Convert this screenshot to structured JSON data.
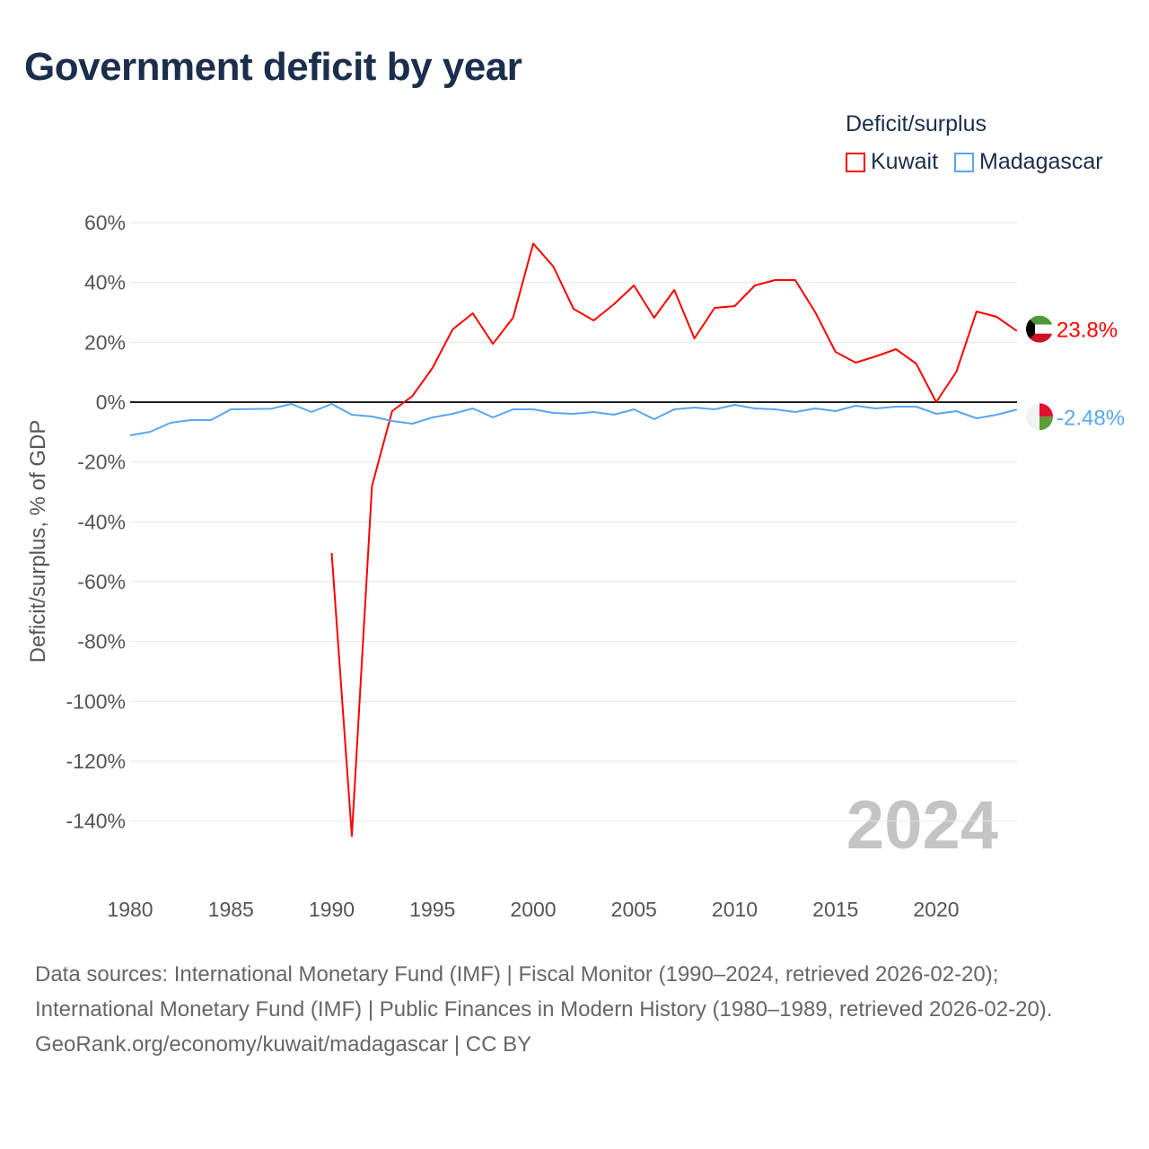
{
  "title": "Government deficit by year",
  "legend": {
    "title": "Deficit/surplus",
    "items": [
      {
        "name": "Kuwait",
        "color": "#ff0000"
      },
      {
        "name": "Madagascar",
        "color": "#5aa5ef"
      }
    ]
  },
  "watermark_year": "2024",
  "sources": [
    "Data sources: International Monetary Fund (IMF) | Fiscal Monitor (1990–2024, retrieved 2026-02-20); International Monetary Fund (IMF) | Public Finances in Modern History (1980–1989, retrieved 2026-02-20).",
    "GeoRank.org/economy/kuwait/madagascar | CC BY"
  ],
  "chart_data": {
    "type": "line",
    "title": "Government deficit by year",
    "xlabel": "",
    "ylabel": "Deficit/surplus, % of GDP",
    "xlim": [
      1980,
      2024
    ],
    "ylim": [
      -160,
      65
    ],
    "xticks": [
      1980,
      1985,
      1990,
      1995,
      2000,
      2005,
      2010,
      2015,
      2020
    ],
    "yticks": [
      60,
      40,
      20,
      0,
      -20,
      -40,
      -60,
      -80,
      -100,
      -120,
      -140
    ],
    "ytick_labels": [
      "60%",
      "40%",
      "20%",
      "0%",
      "-20%",
      "-40%",
      "-60%",
      "-80%",
      "-100%",
      "-120%",
      "-140%"
    ],
    "grid": true,
    "legend_position": "top-right",
    "series": [
      {
        "name": "Kuwait",
        "color": "#ff0000",
        "end_label": "23.8%",
        "x": [
          1990,
          1991,
          1992,
          1993,
          1994,
          1995,
          1996,
          1997,
          1998,
          1999,
          2000,
          2001,
          2002,
          2003,
          2004,
          2005,
          2006,
          2007,
          2008,
          2009,
          2010,
          2011,
          2012,
          2013,
          2014,
          2015,
          2016,
          2017,
          2018,
          2019,
          2020,
          2021,
          2022,
          2023,
          2024
        ],
        "values": [
          -50.4,
          -145,
          -28,
          -3,
          2,
          11.4,
          24.3,
          29.7,
          19.5,
          28.2,
          53,
          45.3,
          31.2,
          27.3,
          32.7,
          39,
          28.2,
          37.5,
          21.3,
          31.5,
          32.1,
          39,
          40.8,
          40.8,
          30,
          16.8,
          13.2,
          15.3,
          17.7,
          12.9,
          0,
          10.2,
          30.3,
          28.5,
          23.8
        ]
      },
      {
        "name": "Madagascar",
        "color": "#5aa5ef",
        "end_label": "-2.48%",
        "x": [
          1980,
          1981,
          1982,
          1983,
          1984,
          1985,
          1986,
          1987,
          1988,
          1989,
          1990,
          1991,
          1992,
          1993,
          1994,
          1995,
          1996,
          1997,
          1998,
          1999,
          2000,
          2001,
          2002,
          2003,
          2004,
          2005,
          2006,
          2007,
          2008,
          2009,
          2010,
          2011,
          2012,
          2013,
          2014,
          2015,
          2016,
          2017,
          2018,
          2019,
          2020,
          2021,
          2022,
          2023,
          2024
        ],
        "values": [
          -11.1,
          -9.9,
          -6.9,
          -6,
          -6,
          -2.4,
          -2.3,
          -2.2,
          -0.6,
          -3.3,
          -0.6,
          -4.2,
          -4.8,
          -6.3,
          -7.2,
          -5.1,
          -3.9,
          -2.1,
          -5.1,
          -2.4,
          -2.4,
          -3.6,
          -3.9,
          -3.3,
          -4.2,
          -2.4,
          -5.7,
          -2.4,
          -1.8,
          -2.4,
          -0.9,
          -2.1,
          -2.4,
          -3.3,
          -2.1,
          -3,
          -1.2,
          -2.1,
          -1.5,
          -1.5,
          -3.9,
          -3,
          -5.4,
          -4.2,
          -2.48
        ]
      }
    ]
  }
}
